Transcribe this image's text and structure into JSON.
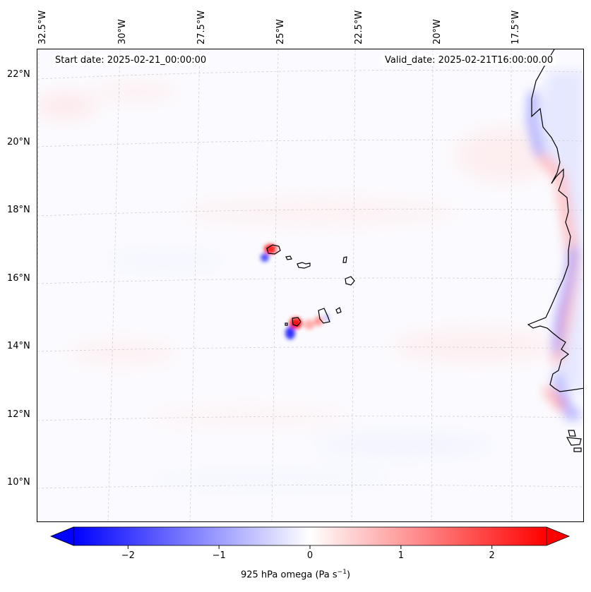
{
  "header": {
    "start_date": "Start date: 2025-02-21_00:00:00",
    "valid_date": "Valid_date: 2025-02-21T16:00:00.00"
  },
  "map": {
    "lon_labels": [
      "32.5°W",
      "30°W",
      "27.5°W",
      "25°W",
      "22.5°W",
      "20°W",
      "17.5°W"
    ],
    "lat_labels": [
      "22°N",
      "20°N",
      "18°N",
      "16°N",
      "14°N",
      "12°N",
      "10°N"
    ],
    "colors": {
      "negative": "#0000ff",
      "zero": "#ffffff",
      "positive": "#ff0000",
      "coastline": "#000000",
      "gridline": "#bbbbbb"
    }
  },
  "colorbar": {
    "ticks": [
      "−2",
      "−1",
      "0",
      "1",
      "2"
    ],
    "tick_values": [
      -2,
      -1,
      0,
      1,
      2
    ],
    "range": [
      -2.6,
      2.6
    ],
    "title": "925 hPa omega (Pa s",
    "title_sup": "−1",
    "title_close": ")"
  }
}
